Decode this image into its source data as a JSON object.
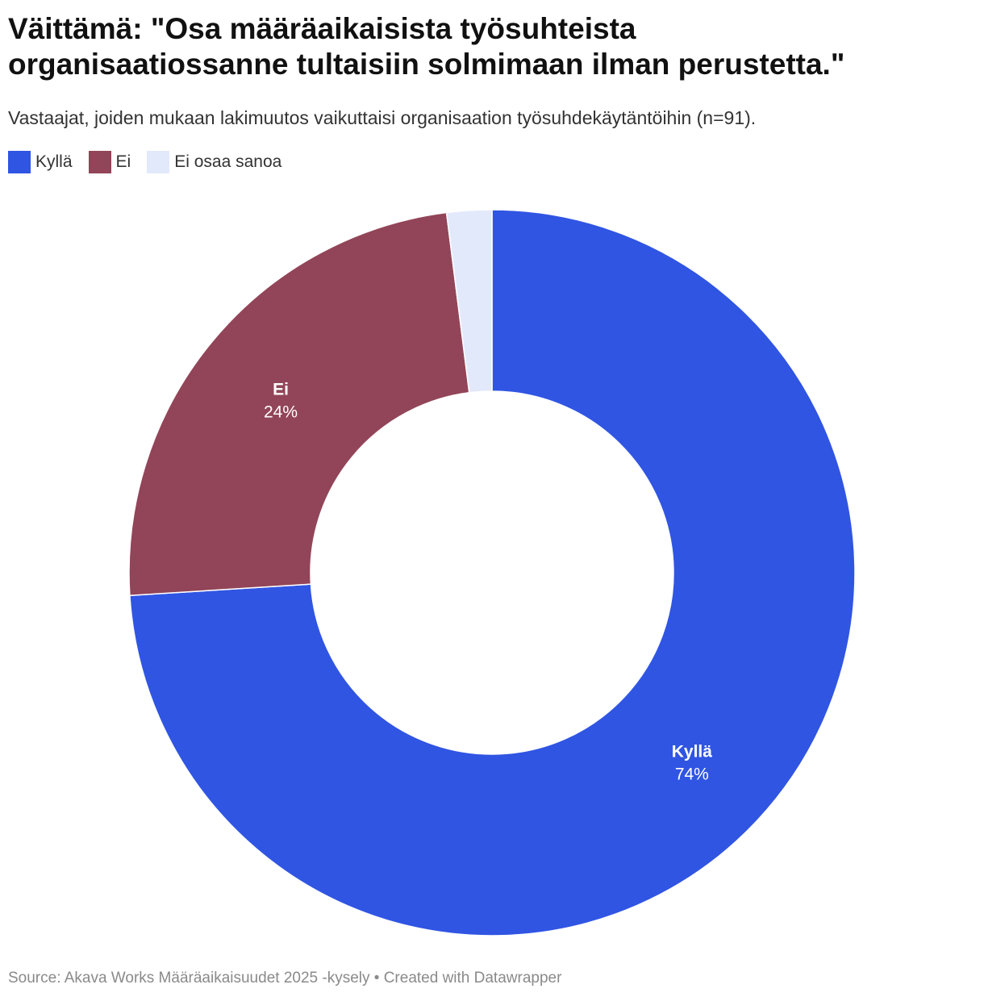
{
  "title_lines": [
    "Väittämä: \"Osa määräaikaisista työsuhteista",
    "organisaatiossanne tultaisiin solmimaan ilman perustetta.\""
  ],
  "subtitle": "Vastaajat, joiden mukaan lakimuutos vaikuttaisi organisaation työsuhdekäytäntöihin (n=91).",
  "legend": [
    {
      "label": "Kyllä",
      "color": "#3055e3"
    },
    {
      "label": "Ei",
      "color": "#924558"
    },
    {
      "label": "Ei osaa sanoa",
      "color": "#e2e9fb"
    }
  ],
  "footer": {
    "source": "Source: Akava Works Määräaikaisuudet 2025 -kysely",
    "separator": " • ",
    "credit": "Created with Datawrapper"
  },
  "chart_data": {
    "type": "pie",
    "donut": true,
    "title": "Väittämä: \"Osa määräaikaisista työsuhteista organisaatiossanne tultaisiin solmimaan ilman perustetta.\"",
    "subtitle": "Vastaajat, joiden mukaan lakimuutos vaikuttaisi organisaation työsuhdekäytäntöihin (n=91).",
    "categories": [
      "Kyllä",
      "Ei",
      "Ei osaa sanoa"
    ],
    "values": [
      74,
      24,
      2
    ],
    "value_labels": [
      "74%",
      "24%",
      ""
    ],
    "colors": [
      "#3055e3",
      "#924558",
      "#e2e9fb"
    ],
    "legend_position": "top-left"
  }
}
